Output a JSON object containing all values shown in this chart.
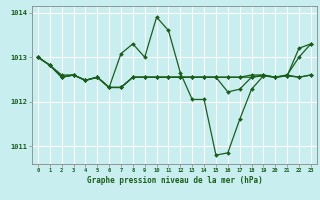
{
  "title": "Graphe pression niveau de la mer (hPa)",
  "bg_color": "#c8eef0",
  "grid_color": "#ffffff",
  "line_color": "#1a5e1a",
  "marker": "D",
  "markersize": 2.0,
  "linewidth": 0.9,
  "xlim": [
    -0.5,
    23.5
  ],
  "ylim": [
    1010.6,
    1014.15
  ],
  "yticks": [
    1011,
    1012,
    1013,
    1014
  ],
  "xticks": [
    0,
    1,
    2,
    3,
    4,
    5,
    6,
    7,
    8,
    9,
    10,
    11,
    12,
    13,
    14,
    15,
    16,
    17,
    18,
    19,
    20,
    21,
    22,
    23
  ],
  "series": [
    [
      1013.0,
      1012.82,
      1012.55,
      1012.6,
      1012.48,
      1012.55,
      1012.32,
      1013.08,
      1013.3,
      1013.0,
      1013.9,
      1013.6,
      1012.65,
      1012.05,
      1012.05,
      1010.8,
      1010.85,
      1011.6,
      1012.28,
      1012.58,
      1012.55,
      1012.58,
      1013.2,
      1013.3
    ],
    [
      1013.0,
      1012.82,
      1012.55,
      1012.6,
      1012.48,
      1012.55,
      1012.32,
      1012.32,
      1012.55,
      1012.55,
      1012.55,
      1012.55,
      1012.55,
      1012.55,
      1012.55,
      1012.55,
      1012.55,
      1012.55,
      1012.55,
      1012.6,
      1012.55,
      1012.6,
      1012.55,
      1012.6
    ],
    [
      1013.0,
      1012.82,
      1012.6,
      1012.6,
      1012.48,
      1012.55,
      1012.32,
      1012.32,
      1012.55,
      1012.55,
      1012.55,
      1012.55,
      1012.55,
      1012.55,
      1012.55,
      1012.55,
      1012.55,
      1012.55,
      1012.6,
      1012.6,
      1012.55,
      1012.6,
      1013.0,
      1013.3
    ],
    [
      1013.0,
      1012.82,
      1012.55,
      1012.6,
      1012.48,
      1012.55,
      1012.32,
      1012.32,
      1012.55,
      1012.55,
      1012.55,
      1012.55,
      1012.55,
      1012.55,
      1012.55,
      1012.55,
      1012.22,
      1012.28,
      1012.55,
      1012.58,
      1012.55,
      1012.58,
      1012.55,
      1012.6
    ]
  ]
}
